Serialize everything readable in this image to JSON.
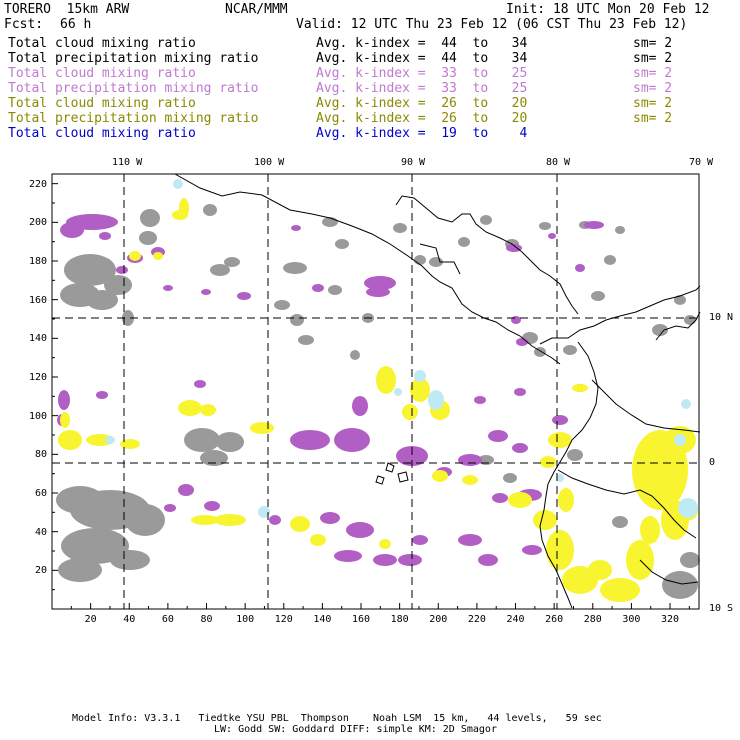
{
  "header": {
    "model": "TORERO  15km ARW",
    "org": "NCAR/MMM",
    "init": "Init: 18 UTC Mon 20 Feb 12",
    "fcst_label": "Fcst:",
    "fcst_value": "66 h",
    "valid": "Valid: 12 UTC Thu 23 Feb 12 (06 CST Thu 23 Feb 12)"
  },
  "legend": [
    {
      "field": "Total cloud mixing ratio",
      "kindex": "Avg. k-index =  44  to   34",
      "sm": "sm= 2",
      "color": "#000000"
    },
    {
      "field": "Total precipitation mixing ratio",
      "kindex": "Avg. k-index =  44  to   34",
      "sm": "sm= 2",
      "color": "#000000"
    },
    {
      "field": "Total cloud mixing ratio",
      "kindex": "Avg. k-index =  33  to   25",
      "sm": "sm= 2",
      "color": "#c07ad0"
    },
    {
      "field": "Total precipitation mixing ratio",
      "kindex": "Avg. k-index =  33  to   25",
      "sm": "sm= 2",
      "color": "#c07ad0"
    },
    {
      "field": "Total cloud mixing ratio",
      "kindex": "Avg. k-index =  26  to   20",
      "sm": "sm= 2",
      "color": "#8a8a00"
    },
    {
      "field": "Total precipitation mixing ratio",
      "kindex": "Avg. k-index =  26  to   20",
      "sm": "sm= 2",
      "color": "#8a8a00"
    },
    {
      "field": "Total cloud mixing ratio",
      "kindex": "Avg. k-index =  19  to    4",
      "sm": "",
      "color": "#0000cc"
    }
  ],
  "axes": {
    "lon_labels": [
      "110 W",
      "100 W",
      "90 W",
      "80 W",
      "70 W"
    ],
    "lat_labels": [
      "10 N",
      "0",
      "10 S"
    ],
    "x_ticks": [
      "20",
      "40",
      "60",
      "80",
      "100",
      "120",
      "140",
      "160",
      "180",
      "200",
      "220",
      "240",
      "260",
      "280",
      "300",
      "320"
    ],
    "y_ticks": [
      "20",
      "40",
      "60",
      "80",
      "100",
      "120",
      "140",
      "160",
      "180",
      "200",
      "220"
    ]
  },
  "colors": {
    "gray": "#9a9a9a",
    "purple": "#b15fc4",
    "yellow": "#f8f530",
    "cyan": "#bfeaf4"
  },
  "footer": {
    "line1": "Model Info: V3.3.1   Tiedtke YSU PBL  Thompson    Noah LSM  15 km,   44 levels,   59 sec",
    "line2": "LW: Godd SW: Goddard DIFF: simple KM: 2D Smagor"
  }
}
